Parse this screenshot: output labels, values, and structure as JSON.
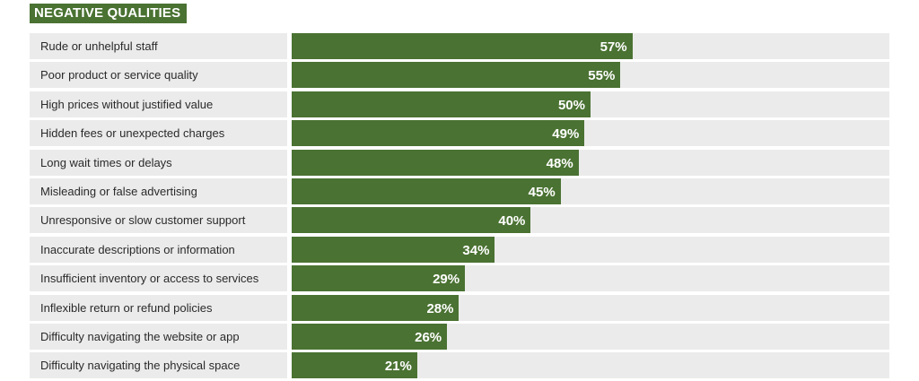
{
  "title": "NEGATIVE QUALITIES",
  "colors": {
    "bar": "#4a7232",
    "track": "#ebebeb",
    "title_bg": "#4a7232"
  },
  "chart_data": {
    "type": "bar",
    "orientation": "horizontal",
    "title": "NEGATIVE QUALITIES",
    "xlim": [
      0,
      100
    ],
    "unit": "%",
    "grid": false,
    "categories": [
      "Rude or unhelpful staff",
      "Poor product or service quality",
      "High prices without justified value",
      "Hidden fees or unexpected charges",
      "Long wait times or delays",
      "Misleading or false advertising",
      "Unresponsive or slow customer support",
      "Inaccurate descriptions or information",
      "Insufficient inventory or access to services",
      "Inflexible return or refund policies",
      "Difficulty navigating the website or app",
      "Difficulty navigating the physical space"
    ],
    "values": [
      57,
      55,
      50,
      49,
      48,
      45,
      40,
      34,
      29,
      28,
      26,
      21
    ]
  }
}
